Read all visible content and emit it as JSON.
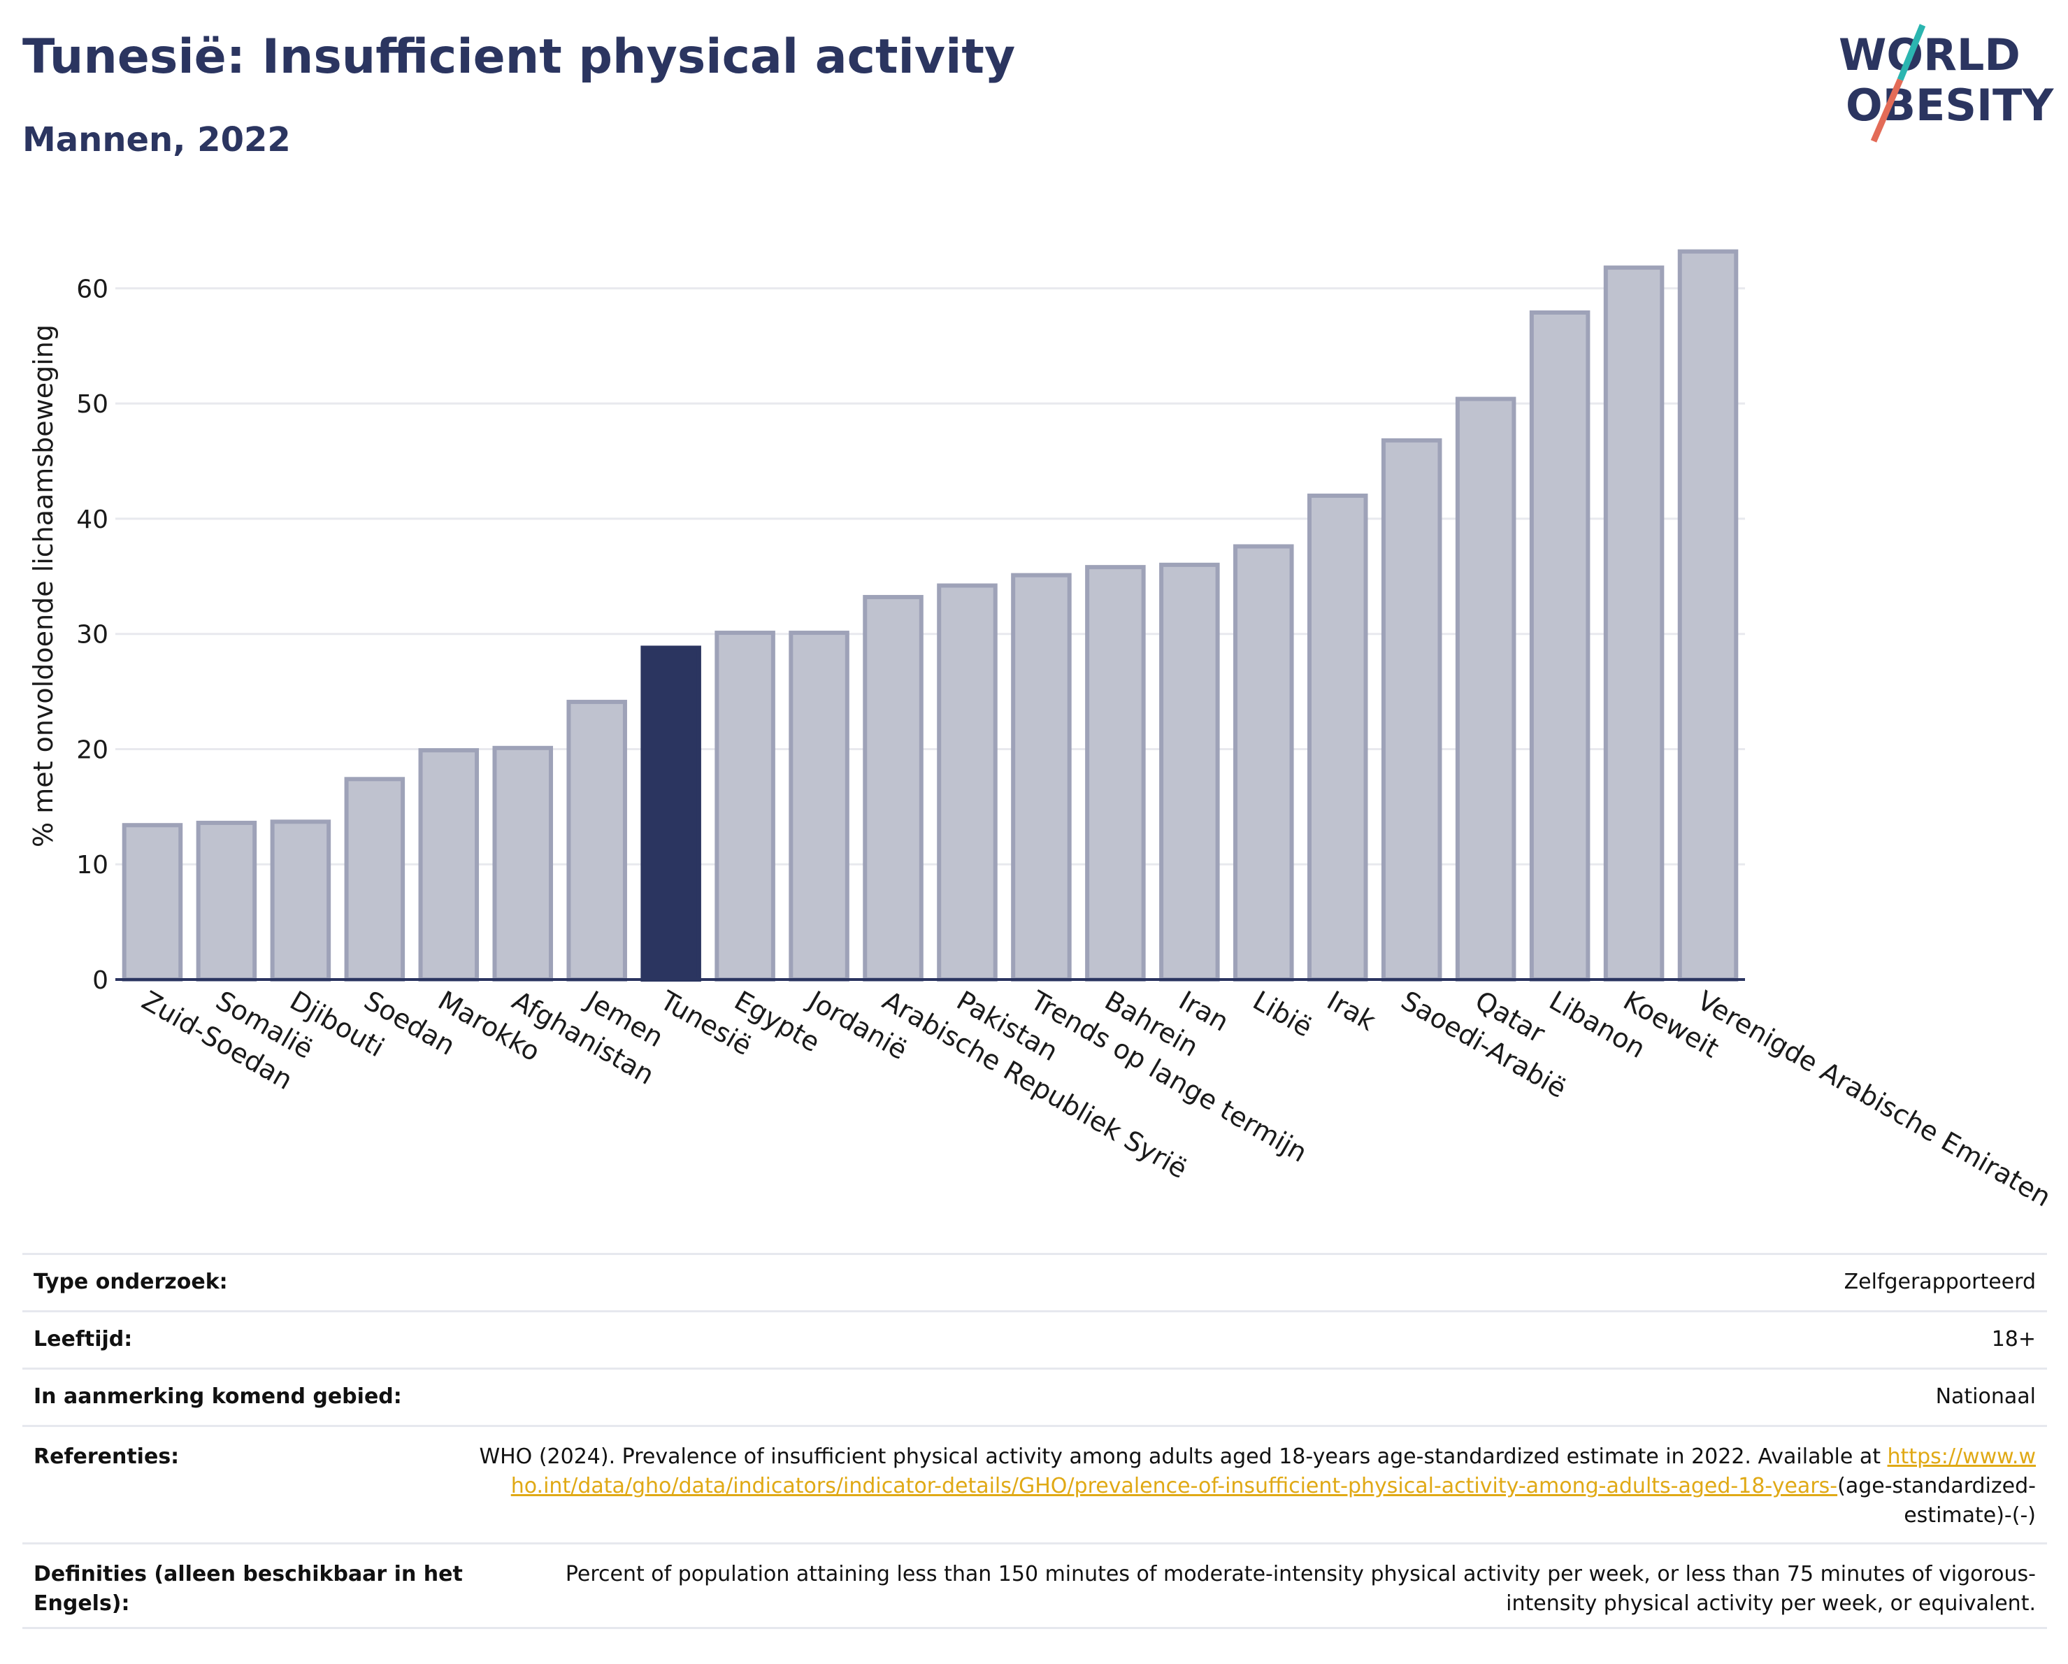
{
  "header": {
    "title": "Tunesië: Insufficient physical activity",
    "subtitle": "Mannen, 2022",
    "logo_line1": "WORLD",
    "logo_line2": "OBESITY"
  },
  "colors": {
    "title": "#2b3560",
    "bar_default": "#bfc2cf",
    "bar_border": "#9ea2b8",
    "bar_highlight": "#2b3560",
    "link": "#e0a915",
    "logo_teal": "#2bb5b0",
    "logo_coral": "#e36b57"
  },
  "chart_data": {
    "type": "bar",
    "ylabel": "% met onvoldoende lichaamsbeweging",
    "ylim": [
      0,
      65
    ],
    "yticks": [
      0,
      10,
      20,
      30,
      40,
      50,
      60
    ],
    "grid": true,
    "highlight": "Tunesië",
    "categories": [
      "Zuid-Soedan",
      "Somalië",
      "Djibouti",
      "Soedan",
      "Marokko",
      "Afghanistan",
      "Jemen",
      "Tunesië",
      "Egypte",
      "Jordanië",
      "Arabische Republiek Syrië",
      "Pakistan",
      "Trends op lange termijn",
      "Bahrein",
      "Iran",
      "Libië",
      "Irak",
      "Saoedi-Arabië",
      "Qatar",
      "Libanon",
      "Koeweit",
      "Verenigde Arabische Emiraten"
    ],
    "values": [
      13.4,
      13.6,
      13.7,
      17.4,
      19.9,
      20.1,
      24.1,
      28.8,
      30.1,
      30.1,
      33.2,
      34.2,
      35.1,
      35.8,
      36.0,
      37.6,
      42.0,
      46.8,
      50.4,
      57.9,
      61.8,
      63.2
    ]
  },
  "meta": {
    "survey_type_label": "Type onderzoek:",
    "survey_type_value": "Zelfgerapporteerd",
    "age_label": "Leeftijd:",
    "age_value": "18+",
    "area_label": "In aanmerking komend gebied:",
    "area_value": "Nationaal",
    "references_label": "Referenties:",
    "references_text": "WHO (2024). Prevalence of insufficient physical activity among adults aged 18-years age-standardized estimate in 2022. Available at",
    "references_link": "https://www.who.int/data/gho/data/indicators/indicator-details/GHO/prevalence-of-insufficient-physical-activity-among-adults-aged-18-years-",
    "references_suffix": "(age-standardized-estimate)-(-)",
    "definitions_label": "Definities (alleen beschikbaar in het Engels):",
    "definitions_value": "Percent of population attaining less than 150 minutes of moderate-intensity physical activity per week, or less than 75 minutes of vigorous-intensity physical activity per week, or equivalent."
  }
}
